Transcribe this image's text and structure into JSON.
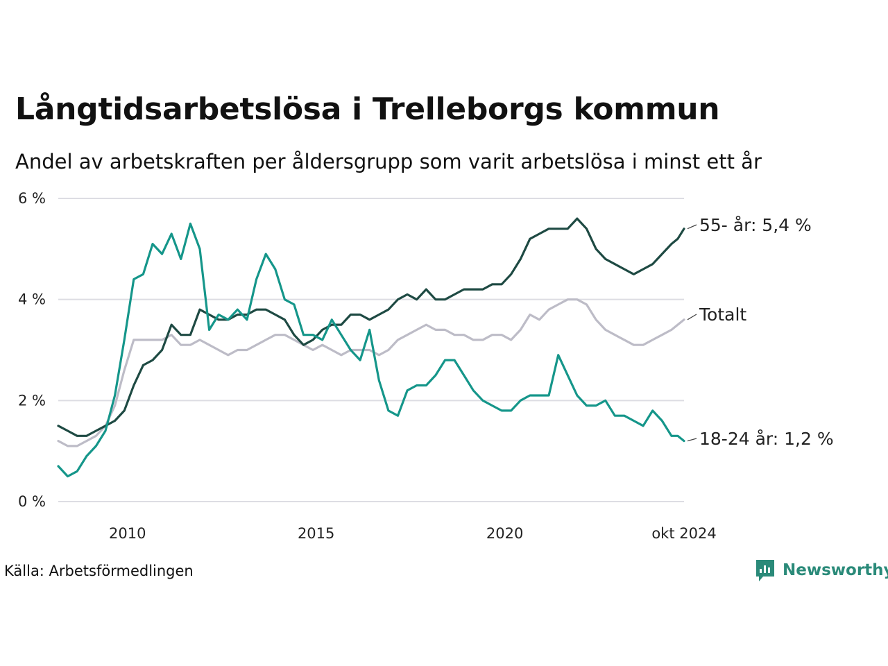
{
  "title": "Långtidsarbetslösa i Trelleborgs kommun",
  "subtitle": "Andel av arbetskraften per åldersgrupp som varit arbetslösa i minst ett år",
  "source": "Källa: Arbetsförmedlingen",
  "brand": "Newsworthy",
  "colors": {
    "total": "#bdbcc7",
    "older": "#1e4a43",
    "young": "#15968a",
    "grid": "#dddde3",
    "brand": "#2a8a79"
  },
  "chart_data": {
    "type": "line",
    "x_start": "2008-03",
    "x_end": "2024-10",
    "ylim": [
      0,
      6
    ],
    "y_ticks": [
      0,
      2,
      4,
      6
    ],
    "y_tick_labels": [
      "0 %",
      "2 %",
      "4 %",
      "6 %"
    ],
    "x_ticks": [
      "2010-01",
      "2015-01",
      "2020-01",
      "2024-10"
    ],
    "x_tick_labels": [
      "2010",
      "2015",
      "2020",
      "okt 2024"
    ],
    "grid": true,
    "series": [
      {
        "key": "total",
        "end_label": "Totalt",
        "points": [
          [
            "2008-03",
            1.2
          ],
          [
            "2008-06",
            1.1
          ],
          [
            "2008-09",
            1.1
          ],
          [
            "2008-12",
            1.2
          ],
          [
            "2009-03",
            1.3
          ],
          [
            "2009-06",
            1.5
          ],
          [
            "2009-09",
            1.9
          ],
          [
            "2009-12",
            2.6
          ],
          [
            "2010-03",
            3.2
          ],
          [
            "2010-06",
            3.2
          ],
          [
            "2010-09",
            3.2
          ],
          [
            "2010-12",
            3.2
          ],
          [
            "2011-03",
            3.3
          ],
          [
            "2011-06",
            3.1
          ],
          [
            "2011-09",
            3.1
          ],
          [
            "2011-12",
            3.2
          ],
          [
            "2012-03",
            3.1
          ],
          [
            "2012-06",
            3.0
          ],
          [
            "2012-09",
            2.9
          ],
          [
            "2012-12",
            3.0
          ],
          [
            "2013-03",
            3.0
          ],
          [
            "2013-06",
            3.1
          ],
          [
            "2013-09",
            3.2
          ],
          [
            "2013-12",
            3.3
          ],
          [
            "2014-03",
            3.3
          ],
          [
            "2014-06",
            3.2
          ],
          [
            "2014-09",
            3.1
          ],
          [
            "2014-12",
            3.0
          ],
          [
            "2015-03",
            3.1
          ],
          [
            "2015-06",
            3.0
          ],
          [
            "2015-09",
            2.9
          ],
          [
            "2015-12",
            3.0
          ],
          [
            "2016-03",
            3.0
          ],
          [
            "2016-06",
            3.0
          ],
          [
            "2016-09",
            2.9
          ],
          [
            "2016-12",
            3.0
          ],
          [
            "2017-03",
            3.2
          ],
          [
            "2017-06",
            3.3
          ],
          [
            "2017-09",
            3.4
          ],
          [
            "2017-12",
            3.5
          ],
          [
            "2018-03",
            3.4
          ],
          [
            "2018-06",
            3.4
          ],
          [
            "2018-09",
            3.3
          ],
          [
            "2018-12",
            3.3
          ],
          [
            "2019-03",
            3.2
          ],
          [
            "2019-06",
            3.2
          ],
          [
            "2019-09",
            3.3
          ],
          [
            "2019-12",
            3.3
          ],
          [
            "2020-03",
            3.2
          ],
          [
            "2020-06",
            3.4
          ],
          [
            "2020-09",
            3.7
          ],
          [
            "2020-12",
            3.6
          ],
          [
            "2021-03",
            3.8
          ],
          [
            "2021-06",
            3.9
          ],
          [
            "2021-09",
            4.0
          ],
          [
            "2021-12",
            4.0
          ],
          [
            "2022-03",
            3.9
          ],
          [
            "2022-06",
            3.6
          ],
          [
            "2022-09",
            3.4
          ],
          [
            "2022-12",
            3.3
          ],
          [
            "2023-03",
            3.2
          ],
          [
            "2023-06",
            3.1
          ],
          [
            "2023-09",
            3.1
          ],
          [
            "2023-12",
            3.2
          ],
          [
            "2024-03",
            3.3
          ],
          [
            "2024-06",
            3.4
          ],
          [
            "2024-08",
            3.5
          ],
          [
            "2024-10",
            3.6
          ]
        ]
      },
      {
        "key": "older",
        "end_label": "55- år: 5,4 %",
        "points": [
          [
            "2008-03",
            1.5
          ],
          [
            "2008-06",
            1.4
          ],
          [
            "2008-09",
            1.3
          ],
          [
            "2008-12",
            1.3
          ],
          [
            "2009-03",
            1.4
          ],
          [
            "2009-06",
            1.5
          ],
          [
            "2009-09",
            1.6
          ],
          [
            "2009-12",
            1.8
          ],
          [
            "2010-03",
            2.3
          ],
          [
            "2010-06",
            2.7
          ],
          [
            "2010-09",
            2.8
          ],
          [
            "2010-12",
            3.0
          ],
          [
            "2011-03",
            3.5
          ],
          [
            "2011-06",
            3.3
          ],
          [
            "2011-09",
            3.3
          ],
          [
            "2011-12",
            3.8
          ],
          [
            "2012-03",
            3.7
          ],
          [
            "2012-06",
            3.6
          ],
          [
            "2012-09",
            3.6
          ],
          [
            "2012-12",
            3.7
          ],
          [
            "2013-03",
            3.7
          ],
          [
            "2013-06",
            3.8
          ],
          [
            "2013-09",
            3.8
          ],
          [
            "2013-12",
            3.7
          ],
          [
            "2014-03",
            3.6
          ],
          [
            "2014-06",
            3.3
          ],
          [
            "2014-09",
            3.1
          ],
          [
            "2014-12",
            3.2
          ],
          [
            "2015-03",
            3.4
          ],
          [
            "2015-06",
            3.5
          ],
          [
            "2015-09",
            3.5
          ],
          [
            "2015-12",
            3.7
          ],
          [
            "2016-03",
            3.7
          ],
          [
            "2016-06",
            3.6
          ],
          [
            "2016-09",
            3.7
          ],
          [
            "2016-12",
            3.8
          ],
          [
            "2017-03",
            4.0
          ],
          [
            "2017-06",
            4.1
          ],
          [
            "2017-09",
            4.0
          ],
          [
            "2017-12",
            4.2
          ],
          [
            "2018-03",
            4.0
          ],
          [
            "2018-06",
            4.0
          ],
          [
            "2018-09",
            4.1
          ],
          [
            "2018-12",
            4.2
          ],
          [
            "2019-03",
            4.2
          ],
          [
            "2019-06",
            4.2
          ],
          [
            "2019-09",
            4.3
          ],
          [
            "2019-12",
            4.3
          ],
          [
            "2020-03",
            4.5
          ],
          [
            "2020-06",
            4.8
          ],
          [
            "2020-09",
            5.2
          ],
          [
            "2020-12",
            5.3
          ],
          [
            "2021-03",
            5.4
          ],
          [
            "2021-06",
            5.4
          ],
          [
            "2021-09",
            5.4
          ],
          [
            "2021-12",
            5.6
          ],
          [
            "2022-03",
            5.4
          ],
          [
            "2022-06",
            5.0
          ],
          [
            "2022-09",
            4.8
          ],
          [
            "2022-12",
            4.7
          ],
          [
            "2023-03",
            4.6
          ],
          [
            "2023-06",
            4.5
          ],
          [
            "2023-09",
            4.6
          ],
          [
            "2023-12",
            4.7
          ],
          [
            "2024-03",
            4.9
          ],
          [
            "2024-06",
            5.1
          ],
          [
            "2024-08",
            5.2
          ],
          [
            "2024-10",
            5.4
          ]
        ]
      },
      {
        "key": "young",
        "end_label": "18-24 år: 1,2 %",
        "points": [
          [
            "2008-03",
            0.7
          ],
          [
            "2008-06",
            0.5
          ],
          [
            "2008-09",
            0.6
          ],
          [
            "2008-12",
            0.9
          ],
          [
            "2009-03",
            1.1
          ],
          [
            "2009-06",
            1.4
          ],
          [
            "2009-09",
            2.1
          ],
          [
            "2009-12",
            3.2
          ],
          [
            "2010-03",
            4.4
          ],
          [
            "2010-06",
            4.5
          ],
          [
            "2010-09",
            5.1
          ],
          [
            "2010-12",
            4.9
          ],
          [
            "2011-03",
            5.3
          ],
          [
            "2011-06",
            4.8
          ],
          [
            "2011-09",
            5.5
          ],
          [
            "2011-12",
            5.0
          ],
          [
            "2012-03",
            3.4
          ],
          [
            "2012-06",
            3.7
          ],
          [
            "2012-09",
            3.6
          ],
          [
            "2012-12",
            3.8
          ],
          [
            "2013-03",
            3.6
          ],
          [
            "2013-06",
            4.4
          ],
          [
            "2013-09",
            4.9
          ],
          [
            "2013-12",
            4.6
          ],
          [
            "2014-03",
            4.0
          ],
          [
            "2014-06",
            3.9
          ],
          [
            "2014-09",
            3.3
          ],
          [
            "2014-12",
            3.3
          ],
          [
            "2015-03",
            3.2
          ],
          [
            "2015-06",
            3.6
          ],
          [
            "2015-09",
            3.3
          ],
          [
            "2015-12",
            3.0
          ],
          [
            "2016-03",
            2.8
          ],
          [
            "2016-06",
            3.4
          ],
          [
            "2016-09",
            2.4
          ],
          [
            "2016-12",
            1.8
          ],
          [
            "2017-03",
            1.7
          ],
          [
            "2017-06",
            2.2
          ],
          [
            "2017-09",
            2.3
          ],
          [
            "2017-12",
            2.3
          ],
          [
            "2018-03",
            2.5
          ],
          [
            "2018-06",
            2.8
          ],
          [
            "2018-09",
            2.8
          ],
          [
            "2018-12",
            2.5
          ],
          [
            "2019-03",
            2.2
          ],
          [
            "2019-06",
            2.0
          ],
          [
            "2019-09",
            1.9
          ],
          [
            "2019-12",
            1.8
          ],
          [
            "2020-03",
            1.8
          ],
          [
            "2020-06",
            2.0
          ],
          [
            "2020-09",
            2.1
          ],
          [
            "2020-12",
            2.1
          ],
          [
            "2021-03",
            2.1
          ],
          [
            "2021-06",
            2.9
          ],
          [
            "2021-09",
            2.5
          ],
          [
            "2021-12",
            2.1
          ],
          [
            "2022-03",
            1.9
          ],
          [
            "2022-06",
            1.9
          ],
          [
            "2022-09",
            2.0
          ],
          [
            "2022-12",
            1.7
          ],
          [
            "2023-03",
            1.7
          ],
          [
            "2023-06",
            1.6
          ],
          [
            "2023-09",
            1.5
          ],
          [
            "2023-12",
            1.8
          ],
          [
            "2024-03",
            1.6
          ],
          [
            "2024-06",
            1.3
          ],
          [
            "2024-08",
            1.3
          ],
          [
            "2024-10",
            1.2
          ]
        ]
      }
    ]
  }
}
